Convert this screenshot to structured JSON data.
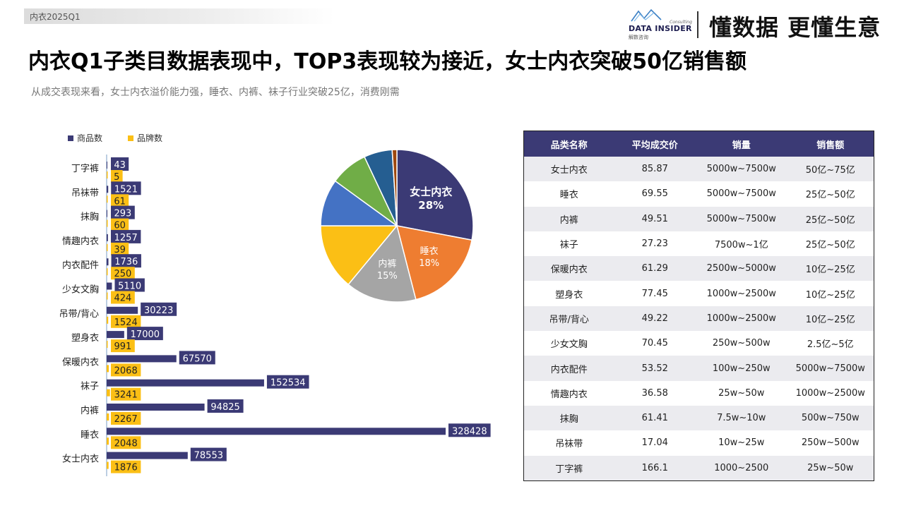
{
  "header": {
    "tag": "内衣2025Q1",
    "logo_consulting": "Consulting",
    "logo_name": "DATA INSIDER",
    "logo_cn": "解数咨询",
    "slogan": "懂数据 更懂生意"
  },
  "title": "内衣Q1子类目数据表现中，TOP3表现较为接近，女士内衣突破50亿销售额",
  "subtitle": "从成交表现来看，女士内衣溢价能力强，睡衣、内裤、袜子行业突破25亿，消费刚需",
  "colors": {
    "product": "#3b3a75",
    "brand": "#fbbf15"
  },
  "chart_data": [
    {
      "type": "bar",
      "orientation": "horizontal",
      "categories": [
        "丁字裤",
        "吊袜带",
        "抹胸",
        "情趣内衣",
        "内衣配件",
        "少女文胸",
        "吊带/背心",
        "塑身衣",
        "保暖内衣",
        "袜子",
        "内裤",
        "睡衣",
        "女士内衣"
      ],
      "series": [
        {
          "name": "商品数",
          "color": "#3b3a75",
          "values": [
            43,
            1521,
            293,
            1257,
            1736,
            5110,
            30223,
            17000,
            67570,
            152534,
            94825,
            328428,
            78553
          ]
        },
        {
          "name": "品牌数",
          "color": "#fbbf15",
          "values": [
            5,
            61,
            60,
            39,
            250,
            424,
            1524,
            991,
            2068,
            3241,
            2267,
            2048,
            1876
          ]
        }
      ],
      "legend_position": "top-left"
    },
    {
      "type": "pie",
      "slices": [
        {
          "label": "女士内衣",
          "value": 28,
          "color": "#3b3a75",
          "show_label": true
        },
        {
          "label": "睡衣",
          "value": 18,
          "color": "#ee7d31",
          "show_label": true
        },
        {
          "label": "内裤",
          "value": 15,
          "color": "#a5a5a5",
          "show_label": true
        },
        {
          "label": "",
          "value": 14,
          "color": "#fbbf15",
          "show_label": false
        },
        {
          "label": "",
          "value": 10,
          "color": "#4472c4",
          "show_label": false
        },
        {
          "label": "",
          "value": 8,
          "color": "#70ad47",
          "show_label": false
        },
        {
          "label": "",
          "value": 6,
          "color": "#255e91",
          "show_label": false
        },
        {
          "label": "",
          "value": 1,
          "color": "#9e480e",
          "show_label": false
        }
      ]
    }
  ],
  "table": {
    "headers": [
      "品类名称",
      "平均成交价",
      "销量",
      "销售额"
    ],
    "rows": [
      [
        "女士内衣",
        "85.87",
        "5000w~7500w",
        "50亿~75亿"
      ],
      [
        "睡衣",
        "69.55",
        "5000w~7500w",
        "25亿~50亿"
      ],
      [
        "内裤",
        "49.51",
        "5000w~7500w",
        "25亿~50亿"
      ],
      [
        "袜子",
        "27.23",
        "7500w~1亿",
        "25亿~50亿"
      ],
      [
        "保暖内衣",
        "61.29",
        "2500w~5000w",
        "10亿~25亿"
      ],
      [
        "塑身衣",
        "77.45",
        "1000w~2500w",
        "10亿~25亿"
      ],
      [
        "吊带/背心",
        "49.22",
        "1000w~2500w",
        "10亿~25亿"
      ],
      [
        "少女文胸",
        "70.45",
        "250w~500w",
        "2.5亿~5亿"
      ],
      [
        "内衣配件",
        "53.52",
        "100w~250w",
        "5000w~7500w"
      ],
      [
        "情趣内衣",
        "36.58",
        "25w~50w",
        "1000w~2500w"
      ],
      [
        "抹胸",
        "61.41",
        "7.5w~10w",
        "500w~750w"
      ],
      [
        "吊袜带",
        "17.04",
        "10w~25w",
        "250w~500w"
      ],
      [
        "丁字裤",
        "166.1",
        "1000~2500",
        "25w~50w"
      ]
    ]
  }
}
